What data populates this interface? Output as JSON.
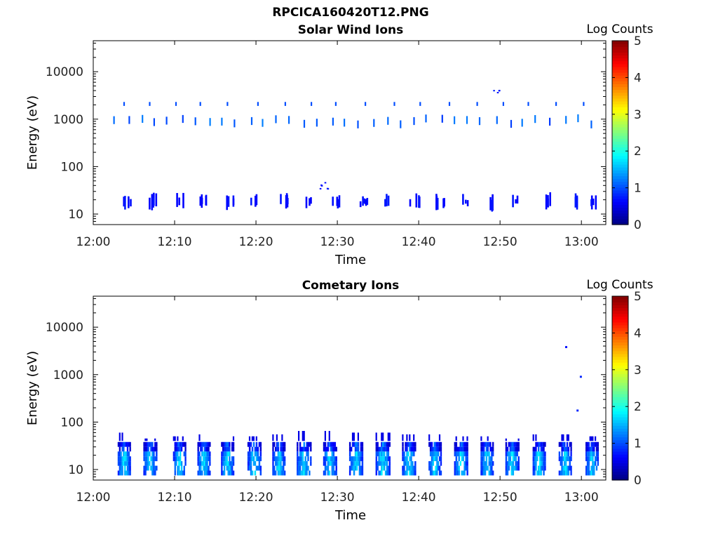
{
  "figure": {
    "title": "RPCICA160420T12.PNG"
  },
  "chart_data": [
    {
      "type": "heatmap",
      "title": "Solar Wind Ions",
      "xlabel": "Time",
      "ylabel": "Energy (eV)",
      "yscale": "log",
      "ylim": [
        6,
        45000
      ],
      "xlim": [
        "12:00",
        "13:03"
      ],
      "x_ticks": [
        "12:00",
        "12:10",
        "12:20",
        "12:30",
        "12:40",
        "12:50",
        "13:00"
      ],
      "y_ticks": [
        "10",
        "100",
        "1000",
        "10000"
      ],
      "colorbar": {
        "label": "Log Counts",
        "range": [
          0,
          5
        ],
        "ticks": [
          "0",
          "1",
          "2",
          "3",
          "4",
          "5"
        ],
        "colormap": "jet"
      },
      "sweep_times": [
        2.3,
        4.0,
        5.6,
        7.0,
        8.8,
        10.5,
        12.1,
        13.8,
        15.5,
        17.1,
        18.9,
        20.5,
        22.2,
        23.9,
        25.5,
        27.2,
        28.9,
        30.7,
        32.3,
        34.0,
        35.7,
        37.4,
        39.0,
        40.7,
        42.5,
        44.1,
        45.7,
        47.3,
        49.1,
        50.8,
        52.4,
        54.1,
        55.8,
        57.6,
        59.2,
        61.0
      ],
      "cells": [
        {
          "t": 4.0,
          "e0": 12,
          "e1": 28,
          "log_counts": 0.6
        },
        {
          "t": 7.3,
          "e0": 12,
          "e1": 30,
          "log_counts": 0.6
        },
        {
          "t": 10.5,
          "e0": 12,
          "e1": 28,
          "log_counts": 0.6
        },
        {
          "t": 13.5,
          "e0": 13,
          "e1": 28,
          "log_counts": 0.6
        },
        {
          "t": 16.6,
          "e0": 12,
          "e1": 30,
          "log_counts": 0.6
        },
        {
          "t": 19.7,
          "e0": 12,
          "e1": 28,
          "log_counts": 0.6
        },
        {
          "t": 23.3,
          "e0": 13,
          "e1": 28,
          "log_counts": 0.6
        },
        {
          "t": 26.5,
          "e0": 13,
          "e1": 30,
          "log_counts": 0.6
        },
        {
          "t": 29.8,
          "e0": 12,
          "e1": 28,
          "log_counts": 0.6
        },
        {
          "t": 33.0,
          "e0": 13,
          "e1": 26,
          "log_counts": 0.6
        },
        {
          "t": 35.6,
          "e0": 12,
          "e1": 28,
          "log_counts": 0.6
        },
        {
          "t": 39.4,
          "e0": 12,
          "e1": 28,
          "log_counts": 0.6
        },
        {
          "t": 42.6,
          "e0": 12,
          "e1": 28,
          "log_counts": 0.6
        },
        {
          "t": 45.7,
          "e0": 13,
          "e1": 28,
          "log_counts": 0.6
        },
        {
          "t": 49.0,
          "e0": 11,
          "e1": 28,
          "log_counts": 0.6
        },
        {
          "t": 52.0,
          "e0": 13,
          "e1": 26,
          "log_counts": 0.6
        },
        {
          "t": 55.6,
          "e0": 12,
          "e1": 30,
          "log_counts": 0.6
        },
        {
          "t": 58.8,
          "e0": 12,
          "e1": 28,
          "log_counts": 0.6
        },
        {
          "t": 61.7,
          "e0": 12,
          "e1": 26,
          "log_counts": 0.6
        },
        {
          "t": 49.5,
          "e0": 4000,
          "e1": 4500,
          "log_counts": 0.7
        },
        {
          "t": 28.4,
          "e0": 44,
          "e1": 50,
          "log_counts": 0.6
        }
      ]
    },
    {
      "type": "heatmap",
      "title": "Cometary Ions",
      "xlabel": "Time",
      "ylabel": "Energy (eV)",
      "yscale": "log",
      "ylim": [
        6,
        45000
      ],
      "xlim": [
        "12:00",
        "13:03"
      ],
      "x_ticks": [
        "12:00",
        "12:10",
        "12:20",
        "12:30",
        "12:40",
        "12:50",
        "13:00"
      ],
      "y_ticks": [
        "10",
        "100",
        "1000",
        "10000"
      ],
      "colorbar": {
        "label": "Log Counts",
        "range": [
          0,
          5
        ],
        "ticks": [
          "0",
          "1",
          "2",
          "3",
          "4",
          "5"
        ],
        "colormap": "jet"
      },
      "bursts": [
        {
          "t": 3.8,
          "w": 1.6,
          "e_low": 7.5,
          "e_high": 60,
          "peak_log_counts": 1.9
        },
        {
          "t": 7.0,
          "w": 1.7,
          "e_low": 7.5,
          "e_high": 45,
          "peak_log_counts": 1.9
        },
        {
          "t": 10.6,
          "w": 1.6,
          "e_low": 7.5,
          "e_high": 50,
          "peak_log_counts": 1.9
        },
        {
          "t": 13.6,
          "w": 1.6,
          "e_low": 7.5,
          "e_high": 55,
          "peak_log_counts": 1.9
        },
        {
          "t": 16.5,
          "w": 1.6,
          "e_low": 7.5,
          "e_high": 50,
          "peak_log_counts": 1.9
        },
        {
          "t": 19.8,
          "w": 1.7,
          "e_low": 7.5,
          "e_high": 50,
          "peak_log_counts": 1.9
        },
        {
          "t": 22.8,
          "w": 1.6,
          "e_low": 7.5,
          "e_high": 55,
          "peak_log_counts": 1.9
        },
        {
          "t": 25.9,
          "w": 1.8,
          "e_low": 7.5,
          "e_high": 65,
          "peak_log_counts": 1.9
        },
        {
          "t": 29.1,
          "w": 1.7,
          "e_low": 7.5,
          "e_high": 65,
          "peak_log_counts": 1.9
        },
        {
          "t": 32.3,
          "w": 1.7,
          "e_low": 7.5,
          "e_high": 60,
          "peak_log_counts": 1.9
        },
        {
          "t": 35.6,
          "w": 1.8,
          "e_low": 7.5,
          "e_high": 60,
          "peak_log_counts": 2.0
        },
        {
          "t": 38.8,
          "w": 1.7,
          "e_low": 7.5,
          "e_high": 55,
          "peak_log_counts": 1.9
        },
        {
          "t": 42.0,
          "w": 1.6,
          "e_low": 7.5,
          "e_high": 55,
          "peak_log_counts": 1.9
        },
        {
          "t": 45.2,
          "w": 1.7,
          "e_low": 7.5,
          "e_high": 50,
          "peak_log_counts": 1.9
        },
        {
          "t": 48.4,
          "w": 1.6,
          "e_low": 7.5,
          "e_high": 50,
          "peak_log_counts": 1.9
        },
        {
          "t": 51.5,
          "w": 1.7,
          "e_low": 7.5,
          "e_high": 45,
          "peak_log_counts": 1.9
        },
        {
          "t": 54.8,
          "w": 1.6,
          "e_low": 7.5,
          "e_high": 55,
          "peak_log_counts": 1.9
        },
        {
          "t": 58.0,
          "w": 1.6,
          "e_low": 7.5,
          "e_high": 55,
          "peak_log_counts": 1.9
        },
        {
          "t": 61.3,
          "w": 1.6,
          "e_low": 7.5,
          "e_high": 50,
          "peak_log_counts": 1.9
        }
      ],
      "points": [
        {
          "t": 58.0,
          "e": 3800,
          "log_counts": 0.7
        },
        {
          "t": 59.8,
          "e": 900,
          "log_counts": 0.8
        },
        {
          "t": 59.4,
          "e": 175,
          "log_counts": 0.8
        }
      ]
    }
  ]
}
